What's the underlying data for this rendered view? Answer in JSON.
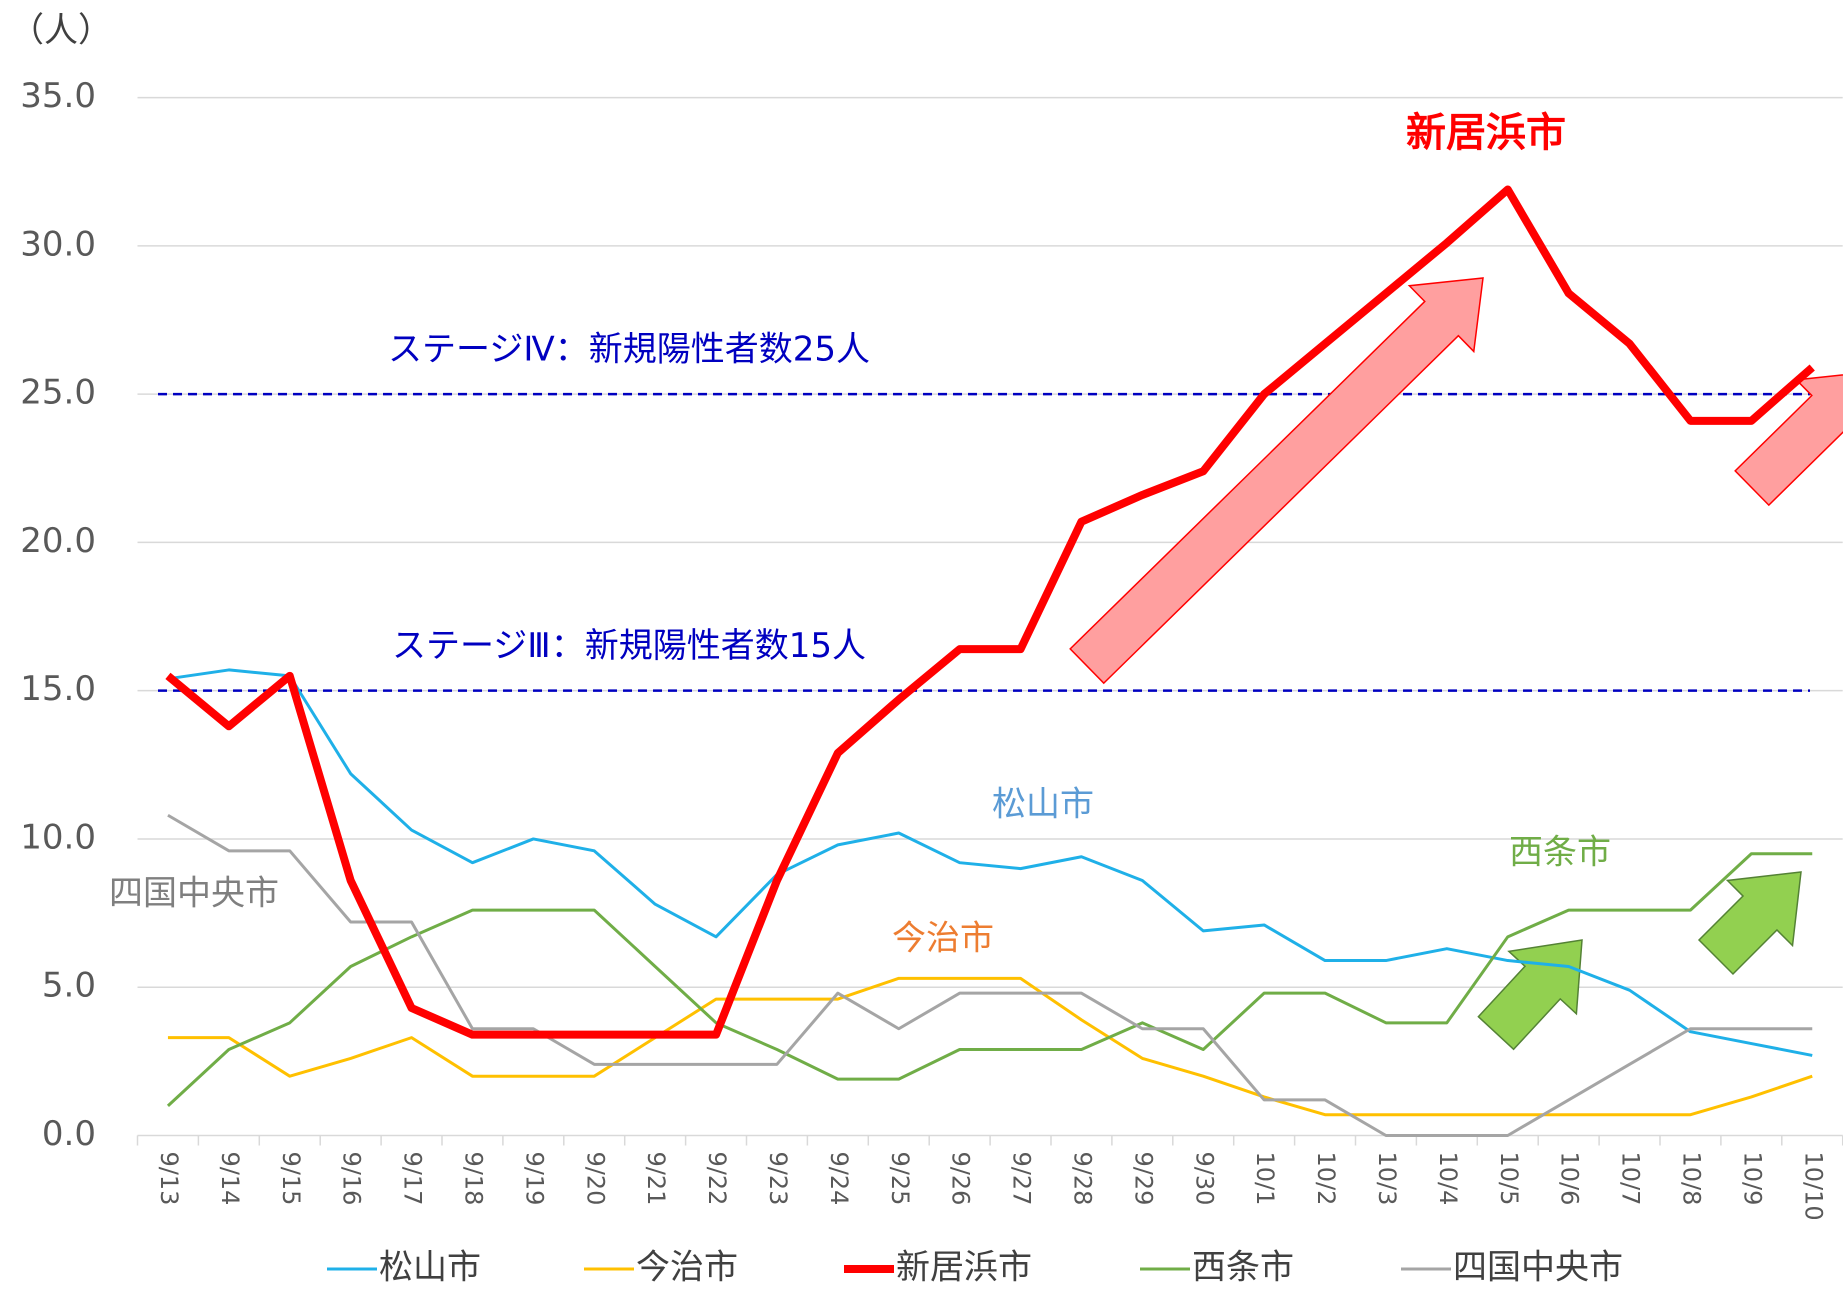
{
  "chart_data": {
    "type": "line",
    "y_unit": "（人）",
    "categories": [
      "9/13",
      "9/14",
      "9/15",
      "9/16",
      "9/17",
      "9/18",
      "9/19",
      "9/20",
      "9/21",
      "9/22",
      "9/23",
      "9/24",
      "9/25",
      "9/26",
      "9/27",
      "9/28",
      "9/29",
      "9/30",
      "10/1",
      "10/2",
      "10/3",
      "10/4",
      "10/5",
      "10/6",
      "10/7",
      "10/8",
      "10/9",
      "10/10"
    ],
    "ylim": [
      0,
      35
    ],
    "yticks": [
      {
        "value": 0,
        "label": "0.0"
      },
      {
        "value": 5,
        "label": "5.0"
      },
      {
        "value": 10,
        "label": "10.0"
      },
      {
        "value": 15,
        "label": "15.0"
      },
      {
        "value": 20,
        "label": "20.0"
      },
      {
        "value": 25,
        "label": "25.0"
      },
      {
        "value": 30,
        "label": "30.0"
      },
      {
        "value": 35,
        "label": "35.0"
      }
    ],
    "grid": true,
    "legend": "bottom",
    "series": [
      {
        "name": "松山市",
        "color": "#1fb0e8",
        "width": 3,
        "values": [
          15.4,
          15.7,
          15.5,
          12.2,
          10.3,
          9.2,
          10.0,
          9.6,
          7.8,
          6.7,
          8.8,
          9.8,
          10.2,
          9.2,
          9.0,
          9.4,
          8.6,
          6.9,
          7.1,
          5.9,
          5.9,
          6.3,
          5.9,
          5.7,
          4.9,
          3.5,
          3.1,
          2.7
        ]
      },
      {
        "name": "今治市",
        "color": "#ffc000",
        "width": 3,
        "values": [
          3.3,
          3.3,
          2.0,
          2.6,
          3.3,
          2.0,
          2.0,
          2.0,
          3.3,
          4.6,
          4.6,
          4.6,
          5.3,
          5.3,
          5.3,
          3.9,
          2.6,
          2.0,
          1.3,
          0.7,
          0.7,
          0.7,
          0.7,
          0.7,
          0.7,
          0.7,
          1.3,
          2.0
        ]
      },
      {
        "name": "新居浜市",
        "color": "#ff0000",
        "width": 8,
        "values": [
          15.5,
          13.8,
          15.5,
          8.6,
          4.3,
          3.4,
          3.4,
          3.4,
          3.4,
          3.4,
          8.6,
          12.9,
          14.7,
          16.4,
          16.4,
          20.7,
          21.6,
          22.4,
          25.0,
          26.7,
          28.4,
          30.1,
          31.9,
          28.4,
          26.7,
          24.1,
          24.1,
          25.9
        ]
      },
      {
        "name": "西条市",
        "color": "#70ad47",
        "width": 3,
        "values": [
          1.0,
          2.9,
          3.8,
          5.7,
          6.7,
          7.6,
          7.6,
          7.6,
          5.7,
          3.8,
          2.9,
          1.9,
          1.9,
          2.9,
          2.9,
          2.9,
          3.8,
          2.9,
          4.8,
          4.8,
          3.8,
          3.8,
          6.7,
          7.6,
          7.6,
          7.6,
          9.5,
          9.5
        ]
      },
      {
        "name": "四国中央市",
        "color": "#a5a5a5",
        "width": 3,
        "values": [
          10.8,
          9.6,
          9.6,
          7.2,
          7.2,
          3.6,
          3.6,
          2.4,
          2.4,
          2.4,
          2.4,
          4.8,
          3.6,
          4.8,
          4.8,
          4.8,
          3.6,
          3.6,
          1.2,
          1.2,
          0.0,
          0.0,
          0.0,
          1.2,
          2.4,
          3.6,
          3.6,
          3.6
        ]
      }
    ],
    "reference_lines": [
      {
        "value": 25,
        "label": "ステージⅣ：新規陽性者数25人",
        "color": "#0000c0"
      },
      {
        "value": 15,
        "label": "ステージⅢ：新規陽性者数15人",
        "color": "#0000c0"
      }
    ],
    "annotations": [
      {
        "text": "新居浜市",
        "color": "#ff0000"
      },
      {
        "text": "松山市",
        "color": "#5b9bd5"
      },
      {
        "text": "今治市",
        "color": "#ed7d31"
      },
      {
        "text": "西条市",
        "color": "#70ad47"
      },
      {
        "text": "四国中央市",
        "color": "#7f7f7f"
      }
    ]
  }
}
